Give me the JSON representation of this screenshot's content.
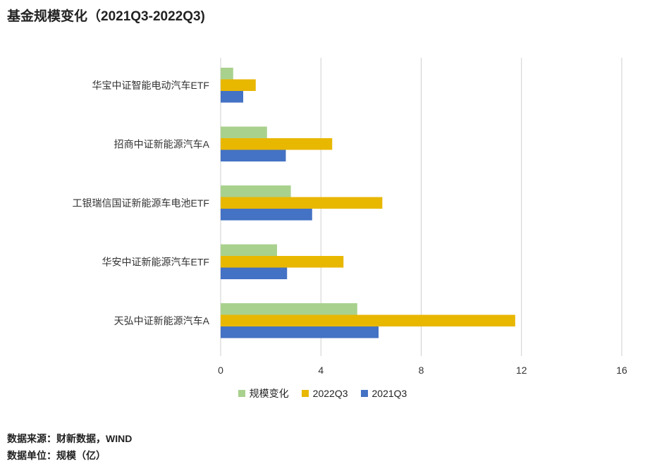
{
  "title": "基金规模变化（2021Q3-2022Q3)",
  "footer": {
    "source": "数据来源：财新数据，WIND",
    "unit": "数据单位：规模（亿）"
  },
  "chart_data": {
    "type": "bar",
    "orientation": "horizontal",
    "categories": [
      "华宝中证智能电动汽车ETF",
      "招商中证新能源汽车A",
      "工银瑞信国证新能源车电池ETF",
      "华安中证新能源汽车ETF",
      "天弘中证新能源汽车A"
    ],
    "series": [
      {
        "name": "规模变化",
        "color": "#a9d18e",
        "values": [
          0.5,
          1.85,
          2.8,
          2.25,
          5.45
        ]
      },
      {
        "name": "2022Q3",
        "color": "#e8b700",
        "values": [
          1.4,
          4.45,
          6.45,
          4.9,
          11.75
        ]
      },
      {
        "name": "2021Q3",
        "color": "#4472c4",
        "values": [
          0.9,
          2.6,
          3.65,
          2.65,
          6.3
        ]
      }
    ],
    "xlim": [
      0,
      16
    ],
    "xticks": [
      0,
      4,
      8,
      12,
      16
    ],
    "grid": true,
    "legend_position": "bottom"
  }
}
